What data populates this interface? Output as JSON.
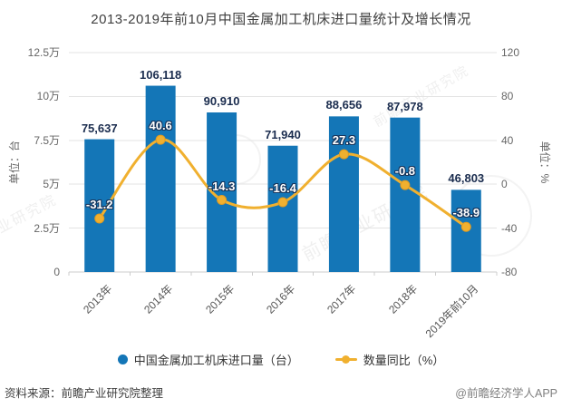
{
  "title": "2013-2019年前10月中国金属加工机床进口量统计及增长情况",
  "chart_data": {
    "type": "bar",
    "subtype": "bar-line-combo",
    "title": "2013-2019年前10月中国金属加工机床进口量统计及增长情况",
    "categories": [
      "2013年",
      "2014年",
      "2015年",
      "2016年",
      "2017年",
      "2018年",
      "2019年前10月"
    ],
    "series": [
      {
        "name": "中国金属加工机床进口量（台）",
        "kind": "bar",
        "axis": "left",
        "color": "#1476b7",
        "values": [
          75637,
          106118,
          90910,
          71940,
          88656,
          87978,
          46803
        ],
        "labels": [
          "75,637",
          "106,118",
          "90,910",
          "71,940",
          "88,656",
          "87,978",
          "46,803"
        ]
      },
      {
        "name": "数量同比（%）",
        "kind": "line",
        "axis": "right",
        "color": "#f0b02f",
        "marker_border": "#e09b22",
        "values": [
          -31.2,
          40.6,
          -14.3,
          -16.4,
          27.3,
          -0.8,
          -38.9
        ],
        "labels": [
          "-31.2",
          "40.6",
          "-14.3",
          "-16.4",
          "27.3",
          "-0.8",
          "-38.9"
        ]
      }
    ],
    "left_axis": {
      "label": "单位：台",
      "min": 0,
      "max": 125000,
      "tick_labels": [
        "12.5万",
        "10万",
        "7.5万",
        "5万",
        "2.5万",
        "0"
      ],
      "tick_values": [
        125000,
        100000,
        75000,
        50000,
        25000,
        0
      ]
    },
    "right_axis": {
      "label": "单位：%",
      "min": -80,
      "max": 120,
      "tick_labels": [
        "120",
        "80",
        "40",
        "0",
        "-40",
        "-80"
      ],
      "tick_values": [
        120,
        80,
        40,
        0,
        -40,
        -80
      ]
    },
    "grid": true,
    "grid_color": "#e3e3e3",
    "axis_line_color": "#cccccc",
    "legend_position": "bottom"
  },
  "legend": {
    "items": [
      {
        "label": "中国金属加工机床进口量（台）",
        "color": "#1476b7",
        "marker": "circle"
      },
      {
        "label": "数量同比（%）",
        "color": "#f0b02f",
        "marker": "line-dot"
      }
    ]
  },
  "footer": {
    "source": "资料来源：前瞻产业研究院整理",
    "credit": "@前瞻经济学人APP"
  },
  "watermark": {
    "text": "前瞻产业研究院"
  }
}
